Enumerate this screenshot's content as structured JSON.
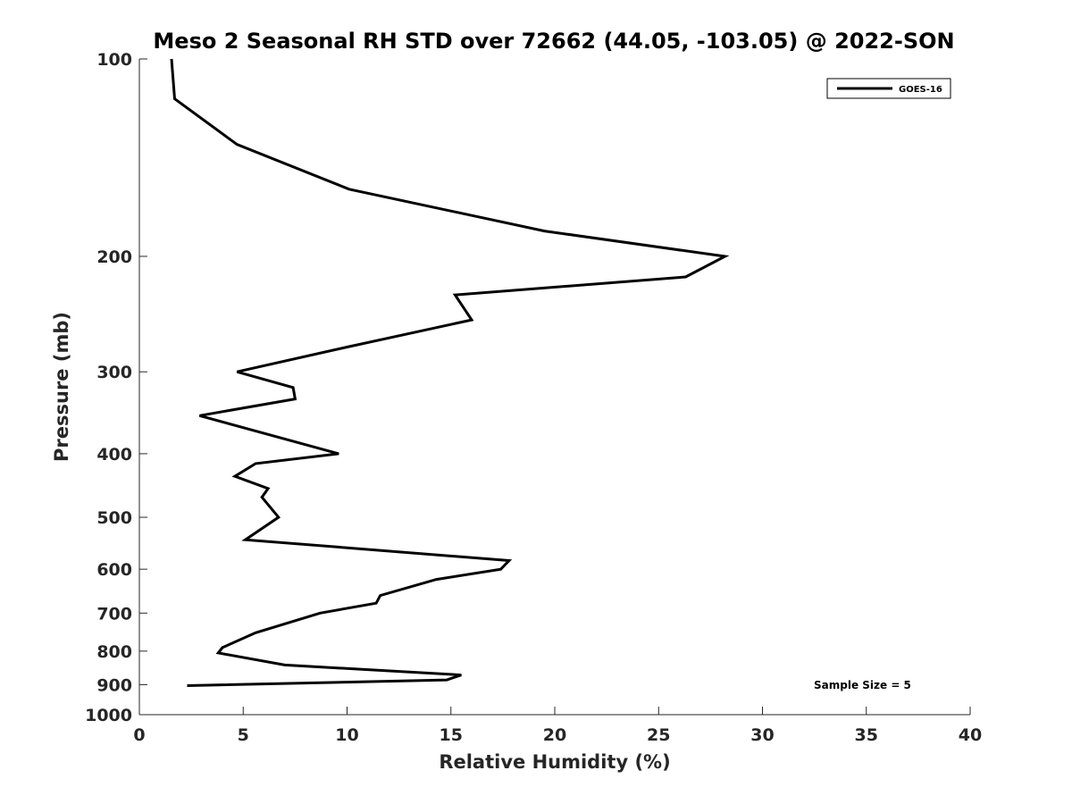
{
  "chart_data": {
    "type": "line",
    "title": "Meso 2 Seasonal RH STD over 72662 (44.05, -103.05) @ 2022-SON",
    "xlabel": "Relative Humidity (%)",
    "ylabel": "Pressure (mb)",
    "xlim": [
      0,
      40
    ],
    "ylim": [
      100,
      1000
    ],
    "yscale": "log",
    "y_reversed": true,
    "grid": false,
    "legend_position": "top-right",
    "xticks": [
      0,
      5,
      10,
      15,
      20,
      25,
      30,
      35,
      40
    ],
    "yticks": [
      100,
      200,
      300,
      400,
      500,
      600,
      700,
      800,
      900,
      1000
    ],
    "series": [
      {
        "name": "GOES-16",
        "color": "#000000",
        "points": [
          {
            "x": 1.55,
            "y": 100
          },
          {
            "x": 1.7,
            "y": 115
          },
          {
            "x": 4.7,
            "y": 135
          },
          {
            "x": 10.1,
            "y": 158
          },
          {
            "x": 19.5,
            "y": 183
          },
          {
            "x": 28.2,
            "y": 200
          },
          {
            "x": 26.3,
            "y": 215
          },
          {
            "x": 15.2,
            "y": 229
          },
          {
            "x": 16.0,
            "y": 250
          },
          {
            "x": 10.0,
            "y": 275
          },
          {
            "x": 4.7,
            "y": 300
          },
          {
            "x": 7.4,
            "y": 317
          },
          {
            "x": 7.5,
            "y": 330
          },
          {
            "x": 2.9,
            "y": 350
          },
          {
            "x": 9.6,
            "y": 400
          },
          {
            "x": 5.6,
            "y": 414
          },
          {
            "x": 4.6,
            "y": 433
          },
          {
            "x": 6.2,
            "y": 452
          },
          {
            "x": 5.9,
            "y": 466
          },
          {
            "x": 6.7,
            "y": 500
          },
          {
            "x": 5.1,
            "y": 541
          },
          {
            "x": 17.8,
            "y": 582
          },
          {
            "x": 17.4,
            "y": 600
          },
          {
            "x": 14.3,
            "y": 622
          },
          {
            "x": 11.6,
            "y": 658
          },
          {
            "x": 11.4,
            "y": 676
          },
          {
            "x": 8.7,
            "y": 700
          },
          {
            "x": 5.6,
            "y": 750
          },
          {
            "x": 4.0,
            "y": 790
          },
          {
            "x": 3.8,
            "y": 805
          },
          {
            "x": 7.0,
            "y": 840
          },
          {
            "x": 15.5,
            "y": 870
          },
          {
            "x": 14.8,
            "y": 885
          },
          {
            "x": 2.3,
            "y": 903
          }
        ]
      }
    ],
    "annotations": [
      "Sample Size = 5"
    ]
  }
}
